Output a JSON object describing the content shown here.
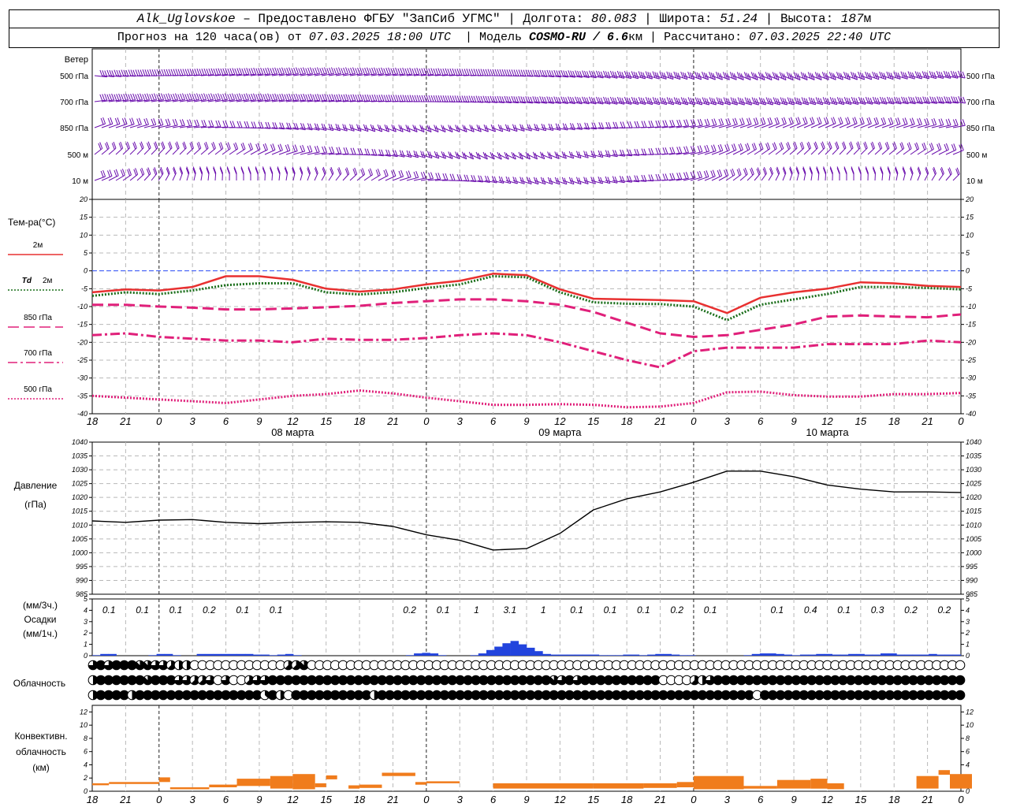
{
  "header": {
    "station": "Alk_Uglovskoe",
    "provider": "– Предоставлено ФГБУ \"ЗапСиб УГМС\"",
    "lon_label": "Долгота:",
    "lon": "80.083",
    "lat_label": "Широта:",
    "lat": "51.24",
    "alt_label": "Высота:",
    "alt": "187",
    "alt_unit": "м",
    "forecast_prefix": "Прогноз на 120 часа(ов) от",
    "forecast_start": "07.03.2025 18:00 UTC",
    "model_label": "Модель",
    "model": "COSMO-RU / 6.6",
    "model_unit": "км",
    "computed_label": "Рассчитано:",
    "computed": "07.03.2025 22:40 UTC"
  },
  "chart_data": {
    "type": "meteogram",
    "time_ticks": [
      "18",
      "21",
      "0",
      "3",
      "6",
      "9",
      "12",
      "15",
      "18",
      "21",
      "0",
      "3",
      "6",
      "9",
      "12",
      "15",
      "18",
      "21",
      "0",
      "3",
      "6",
      "9",
      "12",
      "15",
      "18",
      "21",
      "0"
    ],
    "day_labels": [
      {
        "label": "08 марта",
        "tick_index": 6
      },
      {
        "label": "09 марта",
        "tick_index": 14
      },
      {
        "label": "10 марта",
        "tick_index": 22
      }
    ],
    "midnight_tick_indices": [
      2,
      10,
      18,
      26
    ],
    "wind": {
      "title": "Ветер",
      "levels": [
        "500 гПа",
        "700 гПа",
        "850 гПа",
        "500 м",
        "10  м"
      ],
      "barb_color": "#6a0dad"
    },
    "temperature": {
      "title": "Тем-ра(°С)",
      "ylim": [
        -40,
        20
      ],
      "ticks": [
        20,
        15,
        10,
        5,
        0,
        -5,
        -10,
        -15,
        -20,
        -25,
        -30,
        -35,
        -40
      ],
      "zero_line_color": "#3355ff",
      "series": [
        {
          "name": "2м",
          "color": "#e83030",
          "dash": "solid",
          "values": [
            -6,
            -5.2,
            -5.5,
            -4.5,
            -1.5,
            -1.5,
            -2.5,
            -5,
            -5.8,
            -5.2,
            -3.8,
            -2.8,
            -0.8,
            -1.2,
            -5.2,
            -7.8,
            -8,
            -8.2,
            -8.5,
            -11.8,
            -7.5,
            -6,
            -5,
            -3.2,
            -3.5,
            -4.2,
            -4.5
          ]
        },
        {
          "name": "2м",
          "prefix": "Td",
          "color": "#1a6e1a",
          "dash": "dotted",
          "values": [
            -7,
            -6,
            -6.5,
            -5.5,
            -4,
            -3.5,
            -3.5,
            -6,
            -6.6,
            -6,
            -4.8,
            -3.8,
            -1.5,
            -1.8,
            -6,
            -8.8,
            -9.2,
            -9.3,
            -10,
            -13.8,
            -9.5,
            -8,
            -6.5,
            -4.5,
            -4.5,
            -4.8,
            -5.2
          ]
        },
        {
          "name": "850 гПа",
          "color": "#e0207a",
          "dash": "long-dash",
          "values": [
            -9.5,
            -9.5,
            -10,
            -10.3,
            -10.8,
            -10.8,
            -10.5,
            -10.2,
            -9.8,
            -9,
            -8.5,
            -8,
            -8,
            -8.5,
            -9.5,
            -11.5,
            -14.5,
            -17.5,
            -18.5,
            -18,
            -16.5,
            -15,
            -12.8,
            -12.5,
            -12.8,
            -13,
            -12.2
          ]
        },
        {
          "name": "700 гПа",
          "color": "#e0207a",
          "dash": "dash-dot",
          "values": [
            -18,
            -17.5,
            -18.5,
            -19,
            -19.5,
            -19.5,
            -20,
            -19,
            -19.3,
            -19.3,
            -18.8,
            -18,
            -17.5,
            -18,
            -20,
            -22.5,
            -25,
            -27,
            -22.5,
            -21.5,
            -21.5,
            -21.5,
            -20.5,
            -20.5,
            -20.5,
            -19.5,
            -20
          ]
        },
        {
          "name": "500 гПа",
          "color": "#e0207a",
          "dash": "dotted",
          "values": [
            -35,
            -35.5,
            -36,
            -36.5,
            -37,
            -36,
            -35,
            -34.5,
            -33.5,
            -34.3,
            -35.5,
            -36.5,
            -37.5,
            -37.5,
            -37.3,
            -37.5,
            -38.2,
            -38,
            -37,
            -34,
            -33.8,
            -34.8,
            -35.2,
            -35.2,
            -34.5,
            -34.5,
            -34.2
          ]
        }
      ]
    },
    "pressure": {
      "title": "Давление",
      "unit": "(гПа)",
      "ylim": [
        985,
        1040
      ],
      "ticks": [
        1040,
        1035,
        1030,
        1025,
        1020,
        1015,
        1010,
        1005,
        1000,
        995,
        990,
        985
      ],
      "color": "#000000",
      "values": [
        1011.5,
        1011,
        1011.8,
        1012,
        1011,
        1010.5,
        1011,
        1011.2,
        1011,
        1009.5,
        1006.5,
        1004.5,
        1001,
        1001.5,
        1007,
        1015.5,
        1019.5,
        1022,
        1025.5,
        1029.5,
        1029.5,
        1027.5,
        1024.5,
        1023,
        1022,
        1022,
        1021.8
      ]
    },
    "precipitation": {
      "title": "Осадки",
      "unit_3h": "(мм/3ч.)",
      "unit_1h": "(мм/1ч.)",
      "ylim": [
        0,
        5
      ],
      "ticks": [
        5,
        4,
        3,
        2,
        1,
        0
      ],
      "color": "#2244dd",
      "totals_3h": [
        {
          "tick_index": 0.5,
          "value": "0.1"
        },
        {
          "tick_index": 1.5,
          "value": "0.1"
        },
        {
          "tick_index": 2.5,
          "value": "0.1"
        },
        {
          "tick_index": 3.5,
          "value": "0.2"
        },
        {
          "tick_index": 4.5,
          "value": "0.1"
        },
        {
          "tick_index": 5.5,
          "value": "0.1"
        },
        {
          "tick_index": 9.5,
          "value": "0.2"
        },
        {
          "tick_index": 10.5,
          "value": "0.1"
        },
        {
          "tick_index": 11.5,
          "value": "1"
        },
        {
          "tick_index": 12.5,
          "value": "3.1"
        },
        {
          "tick_index": 13.5,
          "value": "1"
        },
        {
          "tick_index": 14.5,
          "value": "0.1"
        },
        {
          "tick_index": 15.5,
          "value": "0.1"
        },
        {
          "tick_index": 16.5,
          "value": "0.1"
        },
        {
          "tick_index": 17.5,
          "value": "0.2"
        },
        {
          "tick_index": 18.5,
          "value": "0.1"
        },
        {
          "tick_index": 20.5,
          "value": "0.1"
        },
        {
          "tick_index": 21.5,
          "value": "0.4"
        },
        {
          "tick_index": 22.5,
          "value": "0.1"
        },
        {
          "tick_index": 23.5,
          "value": "0.3"
        },
        {
          "tick_index": 24.5,
          "value": "0.2"
        },
        {
          "tick_index": 25.5,
          "value": "0.2"
        }
      ],
      "hourly_values": [
        0.05,
        0.15,
        0.15,
        0,
        0,
        0,
        0,
        0.05,
        0.15,
        0.15,
        0.05,
        0,
        0,
        0.15,
        0.15,
        0.15,
        0.15,
        0.15,
        0.15,
        0.15,
        0.1,
        0.1,
        0.05,
        0.1,
        0.15,
        0.05,
        0,
        0,
        0,
        0,
        0,
        0,
        0,
        0,
        0,
        0,
        0,
        0,
        0,
        0.05,
        0.2,
        0.25,
        0.2,
        0.05,
        0,
        0,
        0,
        0.05,
        0.2,
        0.5,
        0.8,
        1.1,
        1.3,
        1.0,
        0.7,
        0.4,
        0.15,
        0.1,
        0.1,
        0.1,
        0.1,
        0.1,
        0.1,
        0.05,
        0.05,
        0.05,
        0.1,
        0.1,
        0.05,
        0.1,
        0.15,
        0.15,
        0.1,
        0.05,
        0.05,
        0,
        0,
        0,
        0,
        0,
        0,
        0.05,
        0.15,
        0.2,
        0.2,
        0.15,
        0.1,
        0.05,
        0.1,
        0.1,
        0.15,
        0.15,
        0.1,
        0.1,
        0.15,
        0.15,
        0.1,
        0.1,
        0.2,
        0.2,
        0.1,
        0.1,
        0.1,
        0.1,
        0.15,
        0.1,
        0.1,
        0.1
      ]
    },
    "cloud": {
      "title": "Облачность",
      "levels": [
        "upper",
        "middle",
        "lower"
      ],
      "cover_eighths": [
        [
          6,
          8,
          6,
          8,
          8,
          8,
          7,
          7,
          6,
          6,
          5,
          4,
          4,
          0,
          0,
          0,
          0,
          0,
          0,
          0,
          0,
          0,
          0,
          0,
          0,
          5,
          5,
          7,
          0,
          0,
          0,
          0,
          0,
          0,
          0,
          0,
          0,
          0,
          0,
          0,
          0,
          0,
          0,
          0,
          0,
          0,
          0,
          0,
          0,
          0,
          0,
          0,
          0,
          0,
          0,
          0,
          0,
          0,
          0,
          0,
          0,
          0,
          0,
          0,
          0,
          0,
          0,
          0,
          0,
          0,
          0,
          0,
          0,
          0,
          0,
          0,
          0,
          0,
          0,
          0,
          0,
          0,
          0,
          0,
          0,
          0,
          0,
          0,
          0,
          0,
          0,
          0,
          0,
          0,
          0,
          0,
          0,
          0,
          0,
          0,
          0,
          0,
          0,
          0,
          0,
          0,
          0,
          0,
          0,
          0,
          0,
          0
        ],
        [
          4,
          8,
          8,
          8,
          8,
          8,
          8,
          7,
          8,
          8,
          8,
          6,
          6,
          5,
          5,
          6,
          0,
          6,
          0,
          0,
          5,
          6,
          6,
          8,
          8,
          8,
          8,
          8,
          8,
          8,
          8,
          8,
          8,
          8,
          8,
          8,
          8,
          8,
          8,
          8,
          8,
          8,
          8,
          8,
          8,
          8,
          8,
          8,
          8,
          8,
          8,
          8,
          8,
          8,
          8,
          8,
          8,
          8,
          8,
          7,
          6,
          8,
          6,
          8,
          8,
          8,
          8,
          8,
          8,
          8,
          8,
          8,
          8,
          0,
          0,
          0,
          0,
          5,
          4,
          6,
          8,
          8,
          8,
          8,
          8,
          8,
          8,
          8,
          8,
          8,
          8,
          8,
          8,
          8,
          8,
          8,
          8,
          8,
          8,
          8,
          8,
          8,
          8,
          8,
          8,
          8,
          8,
          8,
          8,
          8,
          8,
          8
        ],
        [
          4,
          8,
          8,
          8,
          8,
          4,
          8,
          8,
          8,
          8,
          8,
          8,
          8,
          8,
          8,
          8,
          8,
          8,
          8,
          8,
          8,
          8,
          3,
          8,
          4,
          0,
          8,
          8,
          8,
          8,
          8,
          8,
          8,
          8,
          8,
          8,
          4,
          8,
          8,
          8,
          8,
          8,
          8,
          8,
          8,
          8,
          8,
          8,
          8,
          8,
          8,
          8,
          8,
          8,
          8,
          8,
          8,
          8,
          8,
          8,
          8,
          8,
          8,
          8,
          8,
          8,
          8,
          8,
          8,
          8,
          8,
          8,
          8,
          8,
          8,
          8,
          8,
          8,
          8,
          8,
          8,
          8,
          8,
          8,
          8,
          0,
          8,
          8,
          8,
          8,
          8,
          8,
          8,
          8,
          8,
          8,
          8,
          8,
          8,
          8,
          8,
          8,
          8,
          8,
          8,
          8,
          8,
          8,
          8,
          8,
          8,
          8
        ]
      ]
    },
    "convective": {
      "title": "Конвективн.",
      "title2": "облачность",
      "unit": "(км)",
      "ylim": [
        0,
        13
      ],
      "ticks": [
        12,
        10,
        8,
        6,
        4,
        2,
        0
      ],
      "color": "#f07c1c",
      "bars": [
        {
          "t0": 0,
          "t1": 0.5,
          "base": 0.9,
          "top": 1.2
        },
        {
          "t0": 0.5,
          "t1": 2,
          "base": 1.1,
          "top": 1.4
        },
        {
          "t0": 2,
          "t1": 2.33,
          "base": 1.4,
          "top": 2.1
        },
        {
          "t0": 2.33,
          "t1": 3.5,
          "base": 0.3,
          "top": 0.6
        },
        {
          "t0": 3.5,
          "t1": 4.33,
          "base": 0.6,
          "top": 1.0
        },
        {
          "t0": 4.33,
          "t1": 5.33,
          "base": 0.8,
          "top": 1.9
        },
        {
          "t0": 5.33,
          "t1": 6,
          "base": 0.4,
          "top": 2.3
        },
        {
          "t0": 6,
          "t1": 6.67,
          "base": 0.3,
          "top": 2.6
        },
        {
          "t0": 6.67,
          "t1": 7,
          "base": 0.6,
          "top": 1.2
        },
        {
          "t0": 7,
          "t1": 7.33,
          "base": 1.8,
          "top": 2.4
        },
        {
          "t0": 7.67,
          "t1": 8,
          "base": 0.4,
          "top": 0.9
        },
        {
          "t0": 8,
          "t1": 8.67,
          "base": 0.5,
          "top": 1.0
        },
        {
          "t0": 8.67,
          "t1": 9.67,
          "base": 2.3,
          "top": 2.8
        },
        {
          "t0": 9.67,
          "t1": 10,
          "base": 1.0,
          "top": 1.4
        },
        {
          "t0": 10,
          "t1": 11,
          "base": 1.2,
          "top": 1.5
        },
        {
          "t0": 12,
          "t1": 15,
          "base": 0.4,
          "top": 1.2
        },
        {
          "t0": 15,
          "t1": 16.5,
          "base": 0.4,
          "top": 1.2
        },
        {
          "t0": 16.5,
          "t1": 17.5,
          "base": 0.5,
          "top": 1.2
        },
        {
          "t0": 17.5,
          "t1": 18,
          "base": 0.6,
          "top": 1.4
        },
        {
          "t0": 18,
          "t1": 19.5,
          "base": 0.3,
          "top": 2.3
        },
        {
          "t0": 19.5,
          "t1": 20.5,
          "base": 0.4,
          "top": 0.8
        },
        {
          "t0": 20.5,
          "t1": 21.5,
          "base": 0.4,
          "top": 1.7
        },
        {
          "t0": 21.5,
          "t1": 22,
          "base": 0.4,
          "top": 1.9
        },
        {
          "t0": 22,
          "t1": 22.5,
          "base": 0.3,
          "top": 1.2
        },
        {
          "t0": 24.67,
          "t1": 25.33,
          "base": 0.4,
          "top": 2.3
        },
        {
          "t0": 25.33,
          "t1": 25.67,
          "base": 2.5,
          "top": 3.2
        },
        {
          "t0": 25.67,
          "t1": 26.33,
          "base": 0.4,
          "top": 2.6
        }
      ]
    }
  }
}
